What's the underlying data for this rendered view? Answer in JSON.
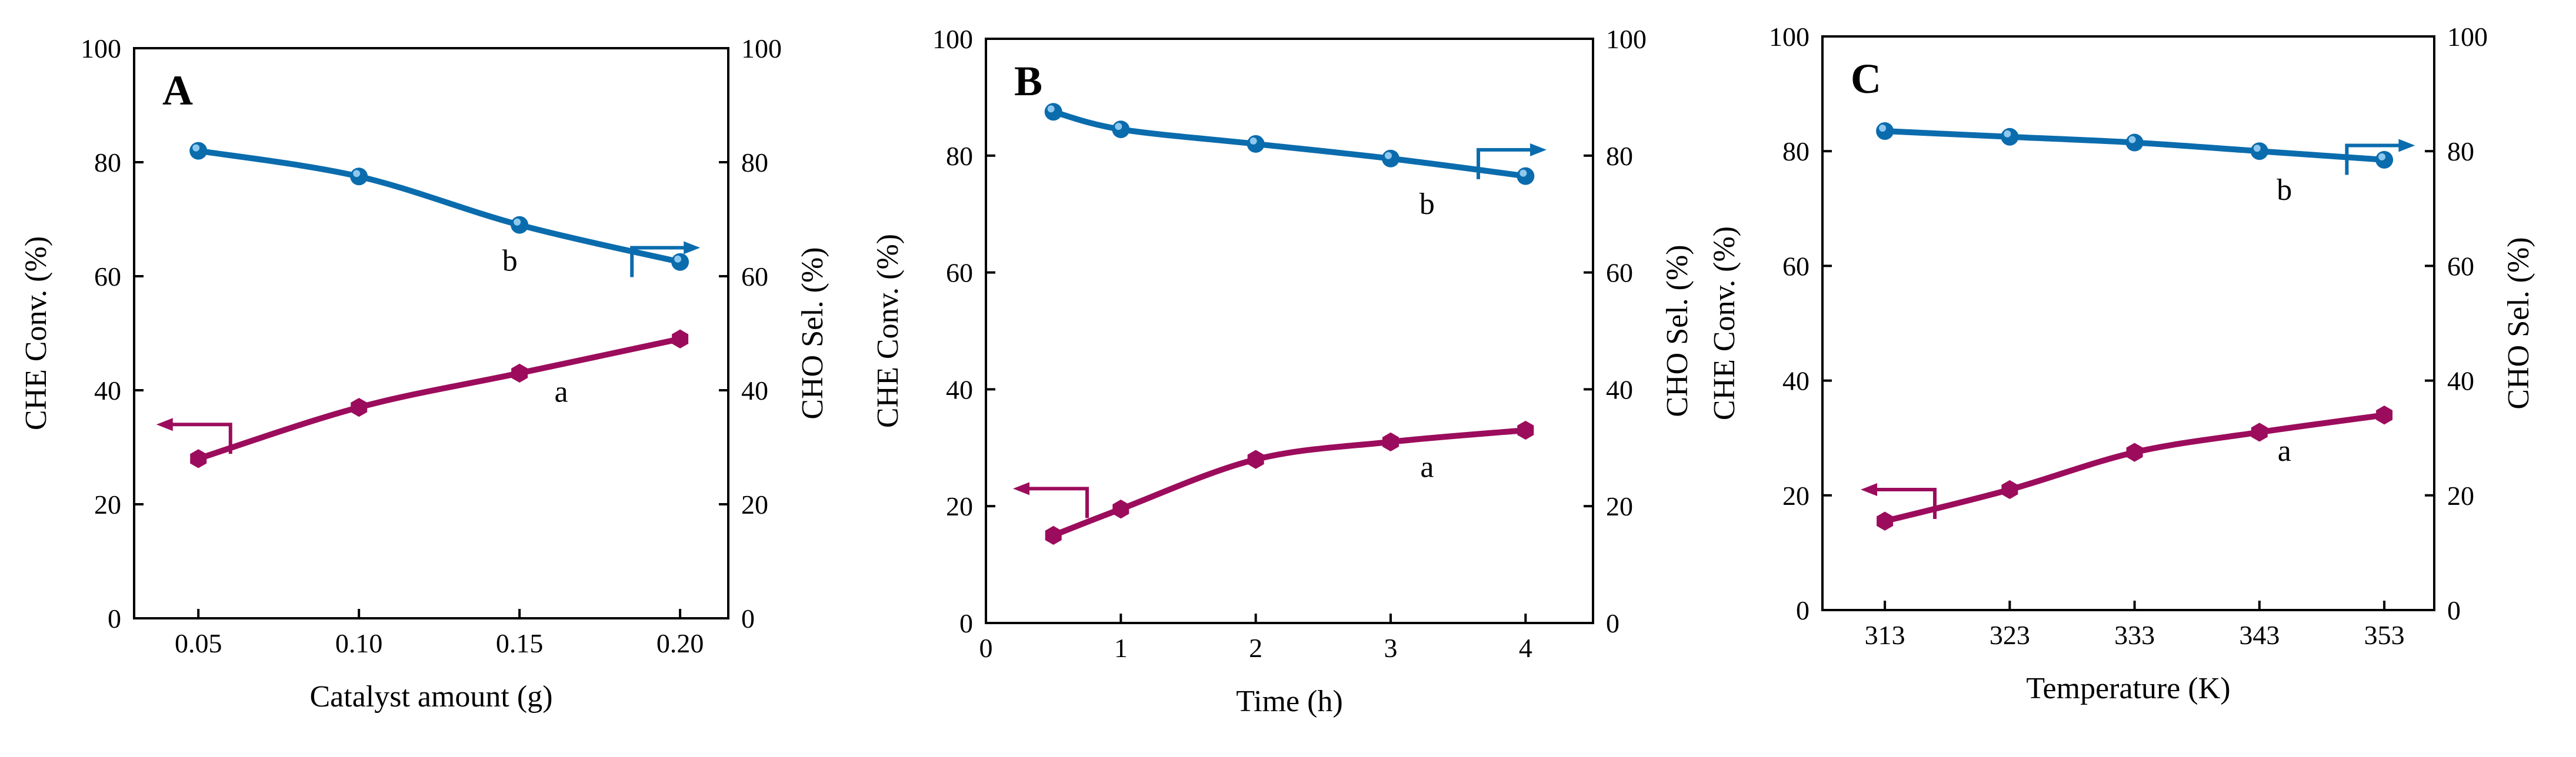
{
  "chart_data": [
    {
      "type": "line",
      "panel_label": "A",
      "xlabel": "Catalyst amount (g)",
      "ylabel_left": "CHE Conv. (%)",
      "ylabel_right": "CHO Sel. (%)",
      "xlim": [
        0.03,
        0.215
      ],
      "ylim": [
        0,
        100
      ],
      "x_ticks": [
        0.05,
        0.1,
        0.15,
        0.2
      ],
      "x_tick_labels": [
        "0.05",
        "0.10",
        "0.15",
        "0.20"
      ],
      "y_ticks": [
        0,
        20,
        40,
        60,
        80,
        100
      ],
      "y_tick_labels": [
        "0",
        "20",
        "40",
        "60",
        "80",
        "100"
      ],
      "series": [
        {
          "name": "a",
          "axis": "left",
          "color": "#9c0c5c",
          "marker": "hexagon",
          "x": [
            0.05,
            0.1,
            0.15,
            0.2
          ],
          "values": [
            28,
            37,
            43,
            49
          ],
          "label_at": [
            0.163,
            38
          ],
          "arrow": {
            "direction": "left",
            "at": [
              0.06,
              34
            ]
          }
        },
        {
          "name": "b",
          "axis": "right",
          "color": "#0a6cad",
          "marker": "sphere",
          "x": [
            0.05,
            0.1,
            0.15,
            0.2
          ],
          "values": [
            82,
            77.5,
            69,
            62.5
          ],
          "label_at": [
            0.147,
            61
          ],
          "arrow": {
            "direction": "right",
            "at": [
              0.185,
              65
            ]
          }
        }
      ]
    },
    {
      "type": "line",
      "panel_label": "B",
      "xlabel": "Time (h)",
      "ylabel_left": "CHE Conv. (%)",
      "ylabel_right": "CHO Sel. (%)",
      "xlim": [
        0,
        4.5
      ],
      "ylim": [
        0,
        100
      ],
      "x_ticks": [
        0,
        1,
        2,
        3,
        4
      ],
      "x_tick_labels": [
        "0",
        "1",
        "2",
        "3",
        "4"
      ],
      "y_ticks": [
        0,
        20,
        40,
        60,
        80,
        100
      ],
      "y_tick_labels": [
        "0",
        "20",
        "40",
        "60",
        "80",
        "100"
      ],
      "series": [
        {
          "name": "a",
          "axis": "left",
          "color": "#9c0c5c",
          "marker": "hexagon",
          "x": [
            0.5,
            1,
            2,
            3,
            4
          ],
          "values": [
            15,
            19.5,
            28,
            31,
            33
          ],
          "label_at": [
            3.27,
            25
          ],
          "arrow": {
            "direction": "left",
            "at": [
              0.75,
              23
            ]
          }
        },
        {
          "name": "b",
          "axis": "right",
          "color": "#0a6cad",
          "marker": "sphere",
          "x": [
            0.5,
            1,
            2,
            3,
            4
          ],
          "values": [
            87.5,
            84.5,
            82,
            79.5,
            76.5
          ],
          "label_at": [
            3.27,
            70
          ],
          "arrow": {
            "direction": "right",
            "at": [
              3.65,
              81
            ]
          }
        }
      ]
    },
    {
      "type": "line",
      "panel_label": "C",
      "xlabel": "Temperature (K)",
      "ylabel_left": "CHE Conv. (%)",
      "ylabel_right": "CHO Sel. (%)",
      "xlim": [
        308,
        357
      ],
      "ylim": [
        0,
        100
      ],
      "x_ticks": [
        313,
        323,
        333,
        343,
        353
      ],
      "x_tick_labels": [
        "313",
        "323",
        "333",
        "343",
        "353"
      ],
      "y_ticks": [
        0,
        20,
        40,
        60,
        80,
        100
      ],
      "y_tick_labels": [
        "0",
        "20",
        "40",
        "60",
        "80",
        "100"
      ],
      "series": [
        {
          "name": "a",
          "axis": "left",
          "color": "#9c0c5c",
          "marker": "hexagon",
          "x": [
            313,
            323,
            333,
            343,
            353
          ],
          "values": [
            15.5,
            21,
            27.5,
            31,
            34
          ],
          "label_at": [
            345,
            26
          ],
          "arrow": {
            "direction": "left",
            "at": [
              317,
              21
            ]
          }
        },
        {
          "name": "b",
          "axis": "right",
          "color": "#0a6cad",
          "marker": "sphere",
          "x": [
            313,
            323,
            333,
            343,
            353
          ],
          "values": [
            83.5,
            82.5,
            81.5,
            80,
            78.5
          ],
          "label_at": [
            345,
            71.5
          ],
          "arrow": {
            "direction": "right",
            "at": [
              350,
              81
            ]
          }
        }
      ]
    }
  ]
}
